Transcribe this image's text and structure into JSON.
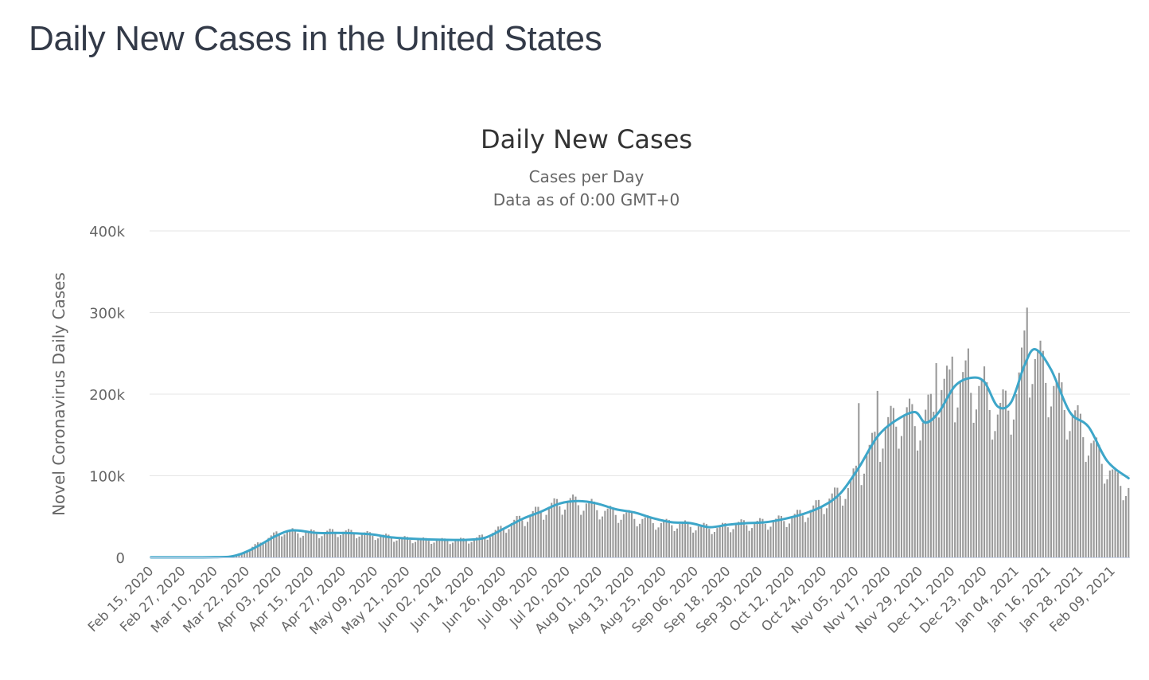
{
  "page": {
    "title": "Daily New Cases in the United States"
  },
  "chart_data": {
    "type": "bar",
    "title": "Daily New Cases",
    "subtitle_lines": [
      "Cases per Day",
      "Data as of 0:00 GMT+0"
    ],
    "xlabel": "",
    "ylabel": "Novel Coronavirus Daily Cases",
    "ylim": [
      0,
      400000
    ],
    "yticks": [
      0,
      100000,
      200000,
      300000,
      400000
    ],
    "ytick_labels": [
      "0",
      "100k",
      "200k",
      "300k",
      "400k"
    ],
    "x_start": "2020-02-15",
    "x_end": "2021-02-15",
    "xtick_labels": [
      "Feb 15, 2020",
      "Feb 27, 2020",
      "Mar 10, 2020",
      "Mar 22, 2020",
      "Apr 03, 2020",
      "Apr 15, 2020",
      "Apr 27, 2020",
      "May 09, 2020",
      "May 21, 2020",
      "Jun 02, 2020",
      "Jun 14, 2020",
      "Jun 26, 2020",
      "Jul 08, 2020",
      "Jul 20, 2020",
      "Aug 01, 2020",
      "Aug 13, 2020",
      "Aug 25, 2020",
      "Sep 06, 2020",
      "Sep 18, 2020",
      "Sep 30, 2020",
      "Oct 12, 2020",
      "Oct 24, 2020",
      "Nov 05, 2020",
      "Nov 17, 2020",
      "Nov 29, 2020",
      "Dec 11, 2020",
      "Dec 23, 2020",
      "Jan 04, 2021",
      "Jan 16, 2021",
      "Jan 28, 2021",
      "Feb 09, 2021"
    ],
    "grid": true,
    "legend": "none",
    "series": [
      {
        "type": "bar",
        "color": "#999999",
        "description": "daily new cases (one bar per day)",
        "anchors": [
          [
            "2020-02-15",
            0
          ],
          [
            "2020-03-01",
            50
          ],
          [
            "2020-03-10",
            300
          ],
          [
            "2020-03-15",
            800
          ],
          [
            "2020-03-19",
            3500
          ],
          [
            "2020-03-23",
            10000
          ],
          [
            "2020-03-27",
            19000
          ],
          [
            "2020-04-01",
            27000
          ],
          [
            "2020-04-04",
            33000
          ],
          [
            "2020-04-10",
            31000
          ],
          [
            "2020-04-18",
            30000
          ],
          [
            "2020-04-25",
            32000
          ],
          [
            "2020-05-02",
            30000
          ],
          [
            "2020-05-10",
            27000
          ],
          [
            "2020-05-17",
            24000
          ],
          [
            "2020-05-24",
            22000
          ],
          [
            "2020-06-01",
            21000
          ],
          [
            "2020-06-08",
            21000
          ],
          [
            "2020-06-15",
            22000
          ],
          [
            "2020-06-22",
            30000
          ],
          [
            "2020-06-29",
            42000
          ],
          [
            "2020-07-06",
            52000
          ],
          [
            "2020-07-13",
            62000
          ],
          [
            "2020-07-20",
            69000
          ],
          [
            "2020-07-27",
            66000
          ],
          [
            "2020-08-03",
            57000
          ],
          [
            "2020-08-10",
            53000
          ],
          [
            "2020-08-17",
            47000
          ],
          [
            "2020-08-24",
            42000
          ],
          [
            "2020-08-31",
            41000
          ],
          [
            "2020-09-07",
            38000
          ],
          [
            "2020-09-14",
            36000
          ],
          [
            "2020-09-21",
            41000
          ],
          [
            "2020-09-28",
            42000
          ],
          [
            "2020-10-05",
            44000
          ],
          [
            "2020-10-12",
            49000
          ],
          [
            "2020-10-19",
            58000
          ],
          [
            "2020-10-26",
            72000
          ],
          [
            "2020-11-02",
            85000
          ],
          [
            "2020-11-09",
            125000
          ],
          [
            "2020-11-16",
            160000
          ],
          [
            "2020-11-23",
            175000
          ],
          [
            "2020-11-30",
            165000
          ],
          [
            "2020-12-07",
            205000
          ],
          [
            "2020-12-14",
            215000
          ],
          [
            "2020-12-21",
            210000
          ],
          [
            "2020-12-28",
            175000
          ],
          [
            "2021-01-04",
            200000
          ],
          [
            "2021-01-08",
            255000
          ],
          [
            "2021-01-13",
            235000
          ],
          [
            "2021-01-20",
            200000
          ],
          [
            "2021-01-27",
            165000
          ],
          [
            "2021-02-03",
            130000
          ],
          [
            "2021-02-10",
            97000
          ],
          [
            "2021-02-15",
            85000
          ]
        ],
        "peaks": [
          [
            "2021-01-08",
            306000
          ],
          [
            "2021-01-07",
            278000
          ],
          [
            "2020-12-17",
            256000
          ],
          [
            "2020-12-11",
            246000
          ],
          [
            "2020-12-05",
            238000
          ],
          [
            "2020-11-13",
            204000
          ],
          [
            "2020-11-06",
            189000
          ],
          [
            "2020-12-23",
            234000
          ]
        ]
      },
      {
        "type": "line",
        "color": "#3da6c9",
        "description": "7-day moving average",
        "points": [
          [
            "2020-02-15",
            0
          ],
          [
            "2020-03-10",
            200
          ],
          [
            "2020-03-18",
            2500
          ],
          [
            "2020-03-25",
            12000
          ],
          [
            "2020-04-01",
            25000
          ],
          [
            "2020-04-06",
            32000
          ],
          [
            "2020-04-10",
            33000
          ],
          [
            "2020-04-17",
            30000
          ],
          [
            "2020-04-24",
            30000
          ],
          [
            "2020-05-01",
            29500
          ],
          [
            "2020-05-08",
            28000
          ],
          [
            "2020-05-15",
            24500
          ],
          [
            "2020-05-22",
            23000
          ],
          [
            "2020-05-29",
            22000
          ],
          [
            "2020-06-05",
            21500
          ],
          [
            "2020-06-12",
            21500
          ],
          [
            "2020-06-19",
            24000
          ],
          [
            "2020-06-26",
            35000
          ],
          [
            "2020-07-03",
            47000
          ],
          [
            "2020-07-10",
            56000
          ],
          [
            "2020-07-17",
            66000
          ],
          [
            "2020-07-24",
            69000
          ],
          [
            "2020-07-31",
            66000
          ],
          [
            "2020-08-07",
            59000
          ],
          [
            "2020-08-14",
            55000
          ],
          [
            "2020-08-21",
            48000
          ],
          [
            "2020-08-28",
            43000
          ],
          [
            "2020-09-04",
            42000
          ],
          [
            "2020-09-11",
            37000
          ],
          [
            "2020-09-18",
            40000
          ],
          [
            "2020-09-25",
            42000
          ],
          [
            "2020-10-02",
            43000
          ],
          [
            "2020-10-09",
            47000
          ],
          [
            "2020-10-16",
            53000
          ],
          [
            "2020-10-23",
            62000
          ],
          [
            "2020-10-30",
            78000
          ],
          [
            "2020-11-06",
            110000
          ],
          [
            "2020-11-13",
            148000
          ],
          [
            "2020-11-20",
            168000
          ],
          [
            "2020-11-27",
            178000
          ],
          [
            "2020-12-01",
            165000
          ],
          [
            "2020-12-06",
            178000
          ],
          [
            "2020-12-12",
            210000
          ],
          [
            "2020-12-18",
            220000
          ],
          [
            "2020-12-23",
            215000
          ],
          [
            "2020-12-28",
            185000
          ],
          [
            "2021-01-02",
            190000
          ],
          [
            "2021-01-07",
            235000
          ],
          [
            "2021-01-11",
            255000
          ],
          [
            "2021-01-17",
            230000
          ],
          [
            "2021-01-24",
            178000
          ],
          [
            "2021-01-31",
            160000
          ],
          [
            "2021-02-07",
            118000
          ],
          [
            "2021-02-15",
            97000
          ]
        ]
      }
    ]
  }
}
